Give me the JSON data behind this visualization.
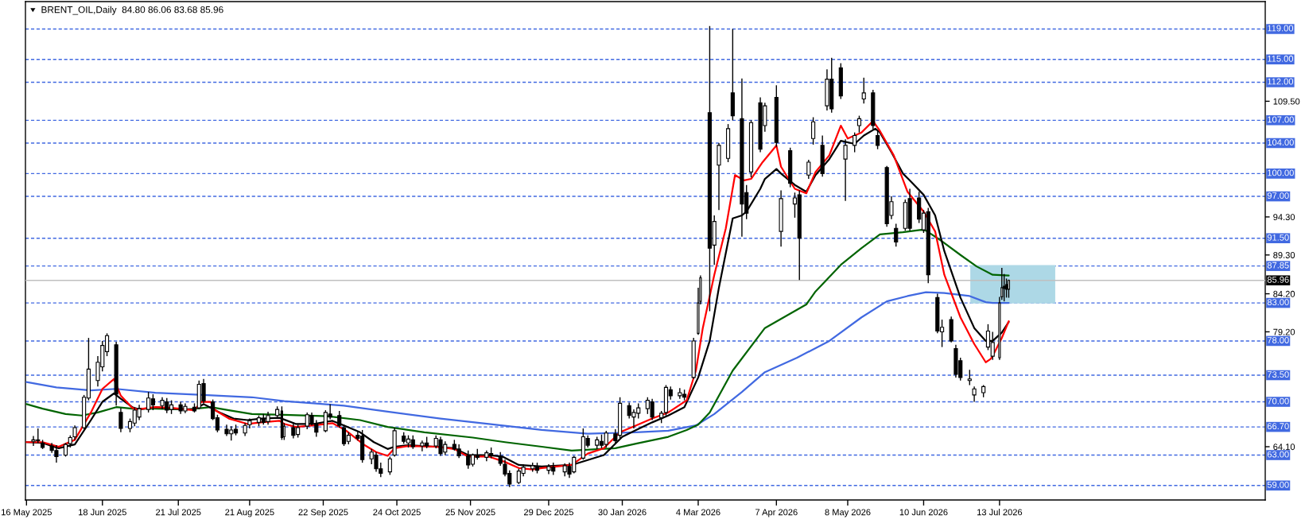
{
  "chart_data": {
    "type": "candlestick",
    "title": "BRENT_OIL,Daily  84.80 86.06 83.68 85.96",
    "x": [
      "2025-05-19",
      "2025-05-21",
      "2025-05-23",
      "2025-05-27",
      "2025-05-29",
      "2025-06-02",
      "2025-06-04",
      "2025-06-06",
      "2025-06-10",
      "2025-06-12",
      "2025-06-16",
      "2025-06-18",
      "2025-06-20",
      "2025-06-24",
      "2025-06-26",
      "2025-06-30",
      "2025-07-02",
      "2025-07-04",
      "2025-07-08",
      "2025-07-10",
      "2025-07-14",
      "2025-07-16",
      "2025-07-18",
      "2025-07-22",
      "2025-07-24",
      "2025-07-28",
      "2025-07-30",
      "2025-08-01",
      "2025-08-05",
      "2025-08-07",
      "2025-08-11",
      "2025-08-13",
      "2025-08-15",
      "2025-08-19",
      "2025-08-21",
      "2025-08-25",
      "2025-08-27",
      "2025-08-29",
      "2025-09-02",
      "2025-09-04",
      "2025-09-05",
      "2025-09-09",
      "2025-09-11",
      "2025-09-15",
      "2025-09-17",
      "2025-09-19",
      "2025-09-23",
      "2025-09-25",
      "2025-09-29",
      "2025-10-01",
      "2025-10-03",
      "2025-10-07",
      "2025-10-09",
      "2025-10-13",
      "2025-10-15",
      "2025-10-17",
      "2025-10-21",
      "2025-10-23",
      "2025-10-27",
      "2025-10-29",
      "2025-10-31",
      "2025-11-04",
      "2025-11-06",
      "2025-11-10",
      "2025-11-12",
      "2025-11-14",
      "2025-11-18",
      "2025-11-20",
      "2025-11-24",
      "2025-11-26",
      "2025-11-28",
      "2025-12-02",
      "2025-12-04",
      "2025-12-08",
      "2025-12-10",
      "2025-12-12",
      "2025-12-16",
      "2025-12-18",
      "2025-12-22",
      "2025-12-24",
      "2025-12-29",
      "2025-12-31",
      "2026-01-05",
      "2026-01-07",
      "2026-01-09",
      "2026-01-13",
      "2026-01-15",
      "2026-01-19",
      "2026-01-21",
      "2026-01-23",
      "2026-01-27",
      "2026-01-29",
      "2026-02-02",
      "2026-02-04",
      "2026-02-06",
      "2026-02-10",
      "2026-02-12",
      "2026-02-16",
      "2026-02-18",
      "2026-02-20",
      "2026-02-24",
      "2026-02-26",
      "2026-03-02",
      "2026-03-04",
      "2026-03-05",
      "2026-03-09",
      "2026-03-11",
      "2026-03-13",
      "2026-03-17",
      "2026-03-19",
      "2026-03-23",
      "2026-03-25",
      "2026-03-27",
      "2026-03-31",
      "2026-04-02",
      "2026-04-07",
      "2026-04-09",
      "2026-04-13",
      "2026-04-15",
      "2026-04-17",
      "2026-04-21",
      "2026-04-23",
      "2026-04-27",
      "2026-04-29",
      "2026-05-01",
      "2026-05-05",
      "2026-05-07",
      "2026-05-11",
      "2026-05-13",
      "2026-05-15",
      "2026-05-19",
      "2026-05-21",
      "2026-05-25",
      "2026-05-27",
      "2026-05-29",
      "2026-06-02",
      "2026-06-04",
      "2026-06-08",
      "2026-06-10",
      "2026-06-12",
      "2026-06-16",
      "2026-06-18",
      "2026-06-22",
      "2026-06-24",
      "2026-06-26",
      "2026-06-30",
      "2026-07-02",
      "2026-07-06",
      "2026-07-08",
      "2026-07-10",
      "2026-07-13",
      "2026-07-14",
      "2026-07-15",
      "2026-07-16",
      "2026-07-17"
    ],
    "ohlc": [
      [
        64.8,
        65.5,
        64.2,
        65.0
      ],
      [
        65.0,
        66.5,
        64.6,
        64.9
      ],
      [
        64.6,
        65.0,
        63.8,
        64.0
      ],
      [
        64.2,
        64.6,
        63.3,
        63.6
      ],
      [
        63.6,
        64.3,
        62.0,
        62.8
      ],
      [
        63.0,
        64.6,
        62.8,
        64.4
      ],
      [
        64.5,
        65.6,
        64.0,
        65.3
      ],
      [
        65.4,
        66.9,
        65.0,
        66.6
      ],
      [
        66.6,
        70.9,
        66.4,
        70.6
      ],
      [
        70.5,
        78.4,
        70.2,
        74.3
      ],
      [
        72.8,
        76.0,
        72.0,
        75.2
      ],
      [
        74.6,
        78.0,
        74.0,
        77.4
      ],
      [
        76.6,
        79.0,
        76.0,
        78.7
      ],
      [
        77.5,
        77.9,
        69.5,
        71.0
      ],
      [
        68.6,
        69.2,
        66.0,
        66.5
      ],
      [
        66.5,
        67.8,
        66.0,
        67.4
      ],
      [
        67.2,
        69.2,
        66.8,
        68.9
      ],
      [
        68.0,
        69.6,
        67.6,
        69.1
      ],
      [
        69.0,
        71.3,
        68.6,
        70.5
      ],
      [
        70.4,
        71.0,
        68.9,
        69.6
      ],
      [
        69.5,
        70.6,
        69.0,
        70.2
      ],
      [
        70.0,
        70.5,
        68.5,
        68.9
      ],
      [
        69.0,
        70.2,
        68.4,
        69.6
      ],
      [
        69.6,
        70.0,
        68.4,
        68.8
      ],
      [
        68.8,
        69.8,
        68.5,
        69.4
      ],
      [
        69.3,
        69.8,
        68.6,
        68.8
      ],
      [
        69.2,
        72.8,
        69.0,
        72.3
      ],
      [
        72.4,
        73.0,
        69.8,
        70.1
      ],
      [
        70.0,
        70.3,
        67.6,
        67.8
      ],
      [
        67.9,
        68.3,
        66.0,
        66.3
      ],
      [
        66.4,
        67.0,
        65.5,
        65.8
      ],
      [
        65.8,
        66.8,
        64.9,
        66.3
      ],
      [
        66.4,
        67.0,
        65.6,
        65.9
      ],
      [
        65.9,
        67.2,
        65.5,
        66.9
      ],
      [
        67.0,
        67.8,
        66.5,
        67.5
      ],
      [
        67.3,
        68.2,
        66.8,
        67.9
      ],
      [
        67.8,
        68.4,
        67.0,
        67.3
      ],
      [
        67.4,
        68.7,
        67.0,
        68.2
      ],
      [
        68.2,
        69.4,
        67.8,
        69.0
      ],
      [
        68.8,
        69.4,
        65.0,
        65.3
      ],
      [
        65.4,
        67.2,
        65.0,
        66.8
      ],
      [
        66.6,
        67.3,
        65.2,
        65.6
      ],
      [
        65.7,
        67.0,
        65.3,
        66.6
      ],
      [
        66.8,
        68.6,
        66.4,
        68.3
      ],
      [
        68.2,
        68.6,
        66.9,
        67.2
      ],
      [
        67.1,
        67.6,
        65.4,
        66.0
      ],
      [
        66.2,
        68.9,
        66.0,
        68.6
      ],
      [
        68.4,
        69.7,
        67.7,
        68.0
      ],
      [
        68.2,
        68.8,
        66.6,
        66.9
      ],
      [
        66.6,
        67.0,
        64.2,
        64.5
      ],
      [
        64.8,
        66.0,
        64.4,
        65.6
      ],
      [
        65.6,
        66.2,
        64.9,
        65.2
      ],
      [
        65.5,
        66.3,
        62.0,
        62.4
      ],
      [
        62.5,
        63.8,
        61.8,
        63.4
      ],
      [
        63.0,
        63.4,
        60.8,
        61.2
      ],
      [
        61.2,
        62.0,
        60.1,
        60.6
      ],
      [
        60.8,
        62.8,
        60.4,
        62.5
      ],
      [
        63.0,
        66.6,
        62.8,
        66.2
      ],
      [
        65.5,
        66.0,
        64.5,
        64.8
      ],
      [
        64.6,
        65.6,
        64.0,
        65.1
      ],
      [
        65.0,
        65.6,
        63.8,
        64.1
      ],
      [
        64.2,
        64.9,
        63.5,
        64.6
      ],
      [
        64.6,
        65.4,
        63.9,
        64.2
      ],
      [
        64.2,
        65.6,
        63.9,
        65.2
      ],
      [
        65.0,
        65.4,
        62.9,
        63.2
      ],
      [
        63.4,
        64.8,
        63.0,
        64.4
      ],
      [
        64.4,
        65.0,
        63.6,
        63.8
      ],
      [
        63.8,
        64.4,
        62.6,
        62.9
      ],
      [
        62.9,
        63.6,
        61.2,
        61.7
      ],
      [
        61.8,
        63.2,
        61.5,
        63.0
      ],
      [
        63.0,
        63.8,
        62.4,
        62.7
      ],
      [
        62.7,
        63.6,
        62.2,
        63.3
      ],
      [
        63.2,
        64.0,
        62.6,
        62.9
      ],
      [
        62.8,
        63.4,
        61.6,
        61.9
      ],
      [
        61.8,
        62.4,
        60.2,
        60.5
      ],
      [
        60.6,
        61.0,
        58.8,
        59.2
      ],
      [
        59.4,
        61.2,
        59.2,
        60.9
      ],
      [
        60.6,
        61.8,
        60.2,
        61.4
      ],
      [
        61.2,
        62.0,
        60.8,
        61.6
      ],
      [
        61.5,
        62.0,
        60.6,
        61.0
      ],
      [
        61.0,
        61.8,
        60.5,
        61.5
      ],
      [
        61.4,
        62.0,
        60.4,
        60.9
      ],
      [
        60.8,
        61.9,
        60.2,
        61.6
      ],
      [
        61.5,
        62.0,
        60.0,
        60.5
      ],
      [
        60.8,
        62.9,
        60.6,
        62.7
      ],
      [
        62.6,
        66.5,
        62.4,
        65.4
      ],
      [
        65.2,
        65.6,
        64.0,
        64.3
      ],
      [
        64.3,
        65.4,
        63.8,
        65.0
      ],
      [
        64.8,
        65.7,
        63.9,
        64.3
      ],
      [
        64.4,
        66.2,
        64.0,
        65.9
      ],
      [
        65.8,
        66.4,
        64.5,
        64.9
      ],
      [
        65.6,
        70.6,
        65.2,
        69.8
      ],
      [
        69.5,
        69.9,
        67.8,
        68.2
      ],
      [
        68.0,
        69.0,
        66.5,
        68.6
      ],
      [
        68.5,
        69.8,
        67.8,
        69.2
      ],
      [
        69.1,
        70.6,
        68.4,
        70.2
      ],
      [
        70.0,
        70.4,
        67.6,
        68.0
      ],
      [
        67.9,
        68.8,
        67.2,
        68.5
      ],
      [
        68.6,
        72.2,
        68.2,
        71.9
      ],
      [
        71.6,
        72.0,
        70.3,
        70.8
      ],
      [
        70.8,
        71.8,
        70.4,
        71.2
      ],
      [
        71.0,
        71.6,
        70.2,
        70.6
      ],
      [
        73.2,
        78.4,
        73.0,
        78.0
      ],
      [
        79.0,
        85.0,
        78.8,
        83.0
      ],
      [
        83.2,
        86.6,
        82.8,
        86.3
      ],
      [
        108.0,
        119.4,
        81.9,
        90.2
      ],
      [
        90.6,
        94.5,
        88.0,
        93.7
      ],
      [
        101.1,
        104.0,
        95.2,
        103.7
      ],
      [
        102.0,
        106.5,
        101.5,
        105.9
      ],
      [
        110.6,
        119.0,
        107.0,
        107.6
      ],
      [
        107.2,
        112.5,
        91.7,
        96.0
      ],
      [
        97.5,
        98.5,
        94.0,
        94.8
      ],
      [
        100.2,
        107.0,
        99.5,
        106.7
      ],
      [
        109.3,
        110.0,
        102.8,
        103.2
      ],
      [
        106.3,
        109.3,
        105.5,
        108.9
      ],
      [
        110.0,
        111.6,
        103.5,
        104.1
      ],
      [
        92.4,
        97.8,
        90.4,
        96.7
      ],
      [
        103.0,
        103.4,
        98.2,
        98.7
      ],
      [
        96.0,
        97.5,
        94.2,
        96.8
      ],
      [
        97.2,
        97.8,
        86.0,
        91.5
      ],
      [
        99.8,
        101.8,
        99.3,
        101.5
      ],
      [
        104.6,
        107.4,
        103.8,
        106.8
      ],
      [
        103.7,
        105.0,
        99.6,
        100.0
      ],
      [
        108.9,
        113.7,
        108.3,
        112.4
      ],
      [
        112.4,
        115.2,
        108.0,
        108.5
      ],
      [
        113.9,
        114.5,
        109.8,
        110.2
      ],
      [
        101.9,
        104.5,
        96.4,
        103.7
      ],
      [
        103.7,
        105.4,
        102.8,
        105.0
      ],
      [
        106.3,
        107.6,
        105.4,
        107.2
      ],
      [
        109.8,
        112.6,
        109.2,
        110.6
      ],
      [
        110.6,
        111.0,
        105.8,
        106.3
      ],
      [
        105.0,
        105.6,
        103.2,
        103.7
      ],
      [
        100.8,
        101.0,
        93.0,
        93.4
      ],
      [
        94.5,
        97.0,
        94.0,
        96.3
      ],
      [
        92.8,
        93.4,
        90.4,
        91.0
      ],
      [
        92.8,
        96.6,
        92.5,
        96.2
      ],
      [
        96.7,
        98.0,
        92.5,
        92.8
      ],
      [
        96.8,
        97.6,
        93.5,
        94.0
      ],
      [
        92.6,
        95.2,
        92.2,
        94.8
      ],
      [
        95.0,
        95.5,
        85.6,
        86.7
      ],
      [
        83.7,
        84.2,
        79.0,
        79.3
      ],
      [
        79.2,
        80.8,
        77.2,
        79.8
      ],
      [
        80.8,
        81.2,
        77.8,
        78.0
      ],
      [
        77.0,
        77.5,
        73.2,
        73.6
      ],
      [
        75.4,
        75.8,
        72.8,
        73.2
      ],
      [
        72.8,
        74.2,
        72.2,
        73.0
      ],
      [
        70.9,
        72.0,
        70.0,
        71.7
      ],
      [
        71.2,
        72.2,
        70.6,
        72.0
      ],
      [
        77.2,
        80.2,
        76.8,
        79.3
      ],
      [
        76.0,
        79.2,
        75.5,
        77.8
      ],
      [
        75.8,
        83.8,
        75.5,
        83.0
      ],
      [
        83.8,
        87.6,
        83.4,
        85.0
      ],
      [
        85.2,
        86.8,
        83.2,
        84.9
      ],
      [
        85.4,
        86.2,
        83.7,
        84.8
      ],
      [
        84.8,
        86.06,
        83.68,
        85.96
      ]
    ],
    "series": [
      {
        "type": "line",
        "color": "#add8e6",
        "x": [
          "2026-06-30T12:00",
          "2026-08-06"
        ],
        "values": [
          87.85,
          87.85
        ],
        "lower": [
          83,
          83
        ],
        "upper": [
          87.85,
          87.85
        ]
      },
      {
        "type": "line",
        "color": "#4169e1",
        "x": [
          "2025-05-16",
          "2025-05-29",
          "2025-06-13",
          "2025-06-24",
          "2025-07-11",
          "2025-08-01",
          "2025-08-22",
          "2025-09-05",
          "2025-10-01",
          "2025-10-20",
          "2025-11-12",
          "2025-12-03",
          "2025-12-26",
          "2026-01-15",
          "2026-02-05",
          "2026-02-19",
          "2026-03-03",
          "2026-03-11",
          "2026-03-23",
          "2026-04-02",
          "2026-04-16",
          "2026-04-30",
          "2026-05-14",
          "2026-05-25",
          "2026-06-03",
          "2026-06-11",
          "2026-06-19",
          "2026-06-30",
          "2026-07-07",
          "2026-07-10",
          "2026-07-17"
        ],
        "values": [
          72.6,
          71.9,
          71.5,
          71.7,
          71.2,
          70.9,
          70.6,
          70.1,
          69.5,
          68.7,
          67.8,
          67.1,
          66.3,
          65.8,
          66.0,
          66.2,
          66.9,
          68.4,
          71.3,
          73.9,
          75.8,
          78.0,
          81.1,
          83.2,
          83.9,
          84.4,
          84.3,
          83.9,
          83.1,
          83.0,
          83.0
        ]
      },
      {
        "type": "line",
        "color": "#006400",
        "x": [
          "2025-05-16",
          "2025-05-23",
          "2025-06-02",
          "2025-06-09",
          "2025-06-16",
          "2025-06-24",
          "2025-07-01",
          "2025-07-11",
          "2025-07-25",
          "2025-08-04",
          "2025-08-12",
          "2025-08-22",
          "2025-09-05",
          "2025-09-24",
          "2025-10-08",
          "2025-10-20",
          "2025-11-05",
          "2025-11-26",
          "2025-12-10",
          "2025-12-26",
          "2026-01-08",
          "2026-01-27",
          "2026-02-05",
          "2026-02-19",
          "2026-02-27",
          "2026-03-04",
          "2026-03-09",
          "2026-03-19",
          "2026-04-02",
          "2026-04-20",
          "2026-04-24",
          "2026-05-05",
          "2026-05-14",
          "2026-05-22",
          "2026-06-01",
          "2026-06-09",
          "2026-06-11",
          "2026-06-18",
          "2026-06-26",
          "2026-07-03",
          "2026-07-10",
          "2026-07-17"
        ],
        "values": [
          69.7,
          69.1,
          68.4,
          68.2,
          68.6,
          69.3,
          69.1,
          69.1,
          69.0,
          69.3,
          68.9,
          68.4,
          68.3,
          68.1,
          67.6,
          66.7,
          66.0,
          65.3,
          64.7,
          64.1,
          63.6,
          63.9,
          64.5,
          65.4,
          66.3,
          67.0,
          68.6,
          74.1,
          79.7,
          82.8,
          84.5,
          88.0,
          90.2,
          92.0,
          92.3,
          92.6,
          92.5,
          91.1,
          89.3,
          87.8,
          86.7,
          86.6
        ]
      },
      {
        "type": "line",
        "color": "#000000",
        "x": [
          "2025-05-16",
          "2025-05-23",
          "2025-05-30",
          "2025-06-06",
          "2025-06-13",
          "2025-06-18",
          "2025-06-23",
          "2025-06-26",
          "2025-07-01",
          "2025-07-04",
          "2025-07-11",
          "2025-07-18",
          "2025-07-28",
          "2025-08-01",
          "2025-08-08",
          "2025-08-14",
          "2025-08-20",
          "2025-08-26",
          "2025-09-03",
          "2025-09-10",
          "2025-09-18",
          "2025-09-26",
          "2025-10-01",
          "2025-10-08",
          "2025-10-14",
          "2025-10-20",
          "2025-10-23",
          "2025-10-29",
          "2025-11-10",
          "2025-11-18",
          "2025-11-24",
          "2025-12-03",
          "2025-12-09",
          "2025-12-16",
          "2025-12-26",
          "2026-01-08",
          "2026-01-22",
          "2026-01-30",
          "2026-02-05",
          "2026-02-12",
          "2026-02-19",
          "2026-02-26",
          "2026-03-04",
          "2026-03-09",
          "2026-03-13",
          "2026-03-19",
          "2026-03-23",
          "2026-03-25",
          "2026-03-31",
          "2026-04-02",
          "2026-04-07",
          "2026-04-09",
          "2026-04-15",
          "2026-04-20",
          "2026-04-24",
          "2026-04-30",
          "2026-05-05",
          "2026-05-11",
          "2026-05-15",
          "2026-05-20",
          "2026-05-22",
          "2026-05-27",
          "2026-06-01",
          "2026-06-04",
          "2026-06-10",
          "2026-06-15",
          "2026-06-19",
          "2026-06-26",
          "2026-07-02",
          "2026-07-07",
          "2026-07-10",
          "2026-07-14",
          "2026-07-17"
        ],
        "values": [
          64.7,
          64.6,
          63.9,
          64.4,
          67.6,
          70.0,
          71.1,
          70.4,
          69.3,
          69.0,
          69.3,
          69.1,
          69.0,
          69.7,
          68.6,
          67.8,
          67.6,
          67.8,
          67.9,
          67.1,
          67.1,
          67.5,
          66.9,
          66.0,
          64.7,
          63.8,
          64.1,
          64.3,
          64.1,
          63.9,
          63.0,
          63.0,
          62.8,
          61.7,
          61.5,
          61.7,
          63.0,
          65.4,
          66.3,
          67.3,
          68.2,
          69.3,
          73.2,
          78.0,
          85.0,
          94.1,
          94.5,
          95.0,
          98.0,
          99.3,
          100.6,
          100.0,
          98.5,
          97.6,
          99.8,
          101.9,
          104.3,
          103.9,
          105.0,
          105.9,
          105.4,
          102.8,
          100.0,
          99.1,
          97.2,
          94.5,
          89.8,
          83.7,
          79.7,
          78.0,
          78.0,
          79.1,
          80.5
        ]
      },
      {
        "type": "line",
        "color": "#ff0000",
        "x": [
          "2025-05-16",
          "2025-05-23",
          "2025-05-30",
          "2025-06-06",
          "2025-06-13",
          "2025-06-18",
          "2025-06-23",
          "2025-06-26",
          "2025-07-01",
          "2025-07-03",
          "2025-07-11",
          "2025-07-18",
          "2025-07-28",
          "2025-07-31",
          "2025-08-04",
          "2025-08-06",
          "2025-08-12",
          "2025-08-20",
          "2025-08-26",
          "2025-09-03",
          "2025-09-05",
          "2025-09-10",
          "2025-09-18",
          "2025-09-26",
          "2025-10-02",
          "2025-10-10",
          "2025-10-15",
          "2025-10-20",
          "2025-10-23",
          "2025-10-29",
          "2025-11-10",
          "2025-11-18",
          "2025-11-24",
          "2025-12-03",
          "2025-12-10",
          "2025-12-16",
          "2025-12-22",
          "2025-12-26",
          "2026-01-08",
          "2026-01-15",
          "2026-01-22",
          "2026-01-29",
          "2026-02-05",
          "2026-02-12",
          "2026-02-19",
          "2026-02-27",
          "2026-03-03",
          "2026-03-06",
          "2026-03-11",
          "2026-03-16",
          "2026-03-20",
          "2026-03-24",
          "2026-03-27",
          "2026-04-01",
          "2026-04-07",
          "2026-04-09",
          "2026-04-15",
          "2026-04-20",
          "2026-04-24",
          "2026-04-30",
          "2026-05-05",
          "2026-05-08",
          "2026-05-14",
          "2026-05-19",
          "2026-05-22",
          "2026-05-28",
          "2026-06-03",
          "2026-06-10",
          "2026-06-15",
          "2026-06-19",
          "2026-06-26",
          "2026-07-02",
          "2026-07-07",
          "2026-07-09",
          "2026-07-10",
          "2026-07-14",
          "2026-07-17"
        ],
        "values": [
          64.7,
          64.7,
          64.1,
          65.0,
          68.6,
          71.7,
          73.0,
          70.8,
          69.2,
          69.0,
          69.3,
          69.2,
          68.9,
          70.0,
          70.0,
          68.9,
          67.8,
          67.1,
          67.3,
          67.5,
          67.1,
          66.7,
          66.9,
          67.2,
          66.2,
          64.3,
          63.4,
          62.9,
          63.9,
          64.2,
          64.1,
          63.8,
          62.8,
          62.8,
          62.1,
          61.3,
          61.1,
          61.3,
          61.7,
          63.2,
          63.9,
          66.0,
          66.9,
          67.8,
          68.6,
          70.2,
          74.1,
          79.7,
          86.7,
          92.8,
          99.8,
          99.1,
          99.3,
          101.5,
          103.7,
          100.9,
          98.0,
          97.4,
          100.2,
          102.4,
          106.3,
          104.6,
          105.4,
          106.9,
          105.6,
          102.4,
          97.6,
          95.0,
          92.4,
          86.7,
          81.1,
          77.6,
          75.2,
          75.6,
          76.0,
          78.4,
          80.6
        ]
      }
    ],
    "xlim": [
      "2025-05-15T13:00",
      "2026-11-05T12:00"
    ],
    "xticks": [
      {
        "value": "2025-05-16",
        "label": "16 May 2025"
      },
      {
        "value": "2025-06-18",
        "label": "18 Jun 2025"
      },
      {
        "value": "2025-07-21",
        "label": "21 Jul 2025"
      },
      {
        "value": "2025-08-21",
        "label": "21 Aug 2025"
      },
      {
        "value": "2025-09-22",
        "label": "22 Sep 2025"
      },
      {
        "value": "2025-10-24",
        "label": "24 Oct 2025"
      },
      {
        "value": "2025-11-25",
        "label": "25 Nov 2025"
      },
      {
        "value": "2025-12-29",
        "label": "29 Dec 2025"
      },
      {
        "value": "2026-01-30",
        "label": "30 Jan 2026"
      },
      {
        "value": "2026-03-04",
        "label": "4 Mar 2026"
      },
      {
        "value": "2026-04-07",
        "label": "7 Apr 2026"
      },
      {
        "value": "2026-05-08",
        "label": "8 May 2026"
      },
      {
        "value": "2026-06-10",
        "label": "10 Jun 2026"
      },
      {
        "value": "2026-07-13",
        "label": "13 Jul 2026"
      }
    ],
    "ylim": [
      57.1,
      122.6
    ],
    "yticks": [
      {
        "value": 109.5,
        "label": "109.50"
      },
      {
        "value": 94.3,
        "label": "94.30"
      },
      {
        "value": 89.3,
        "label": "89.30"
      },
      {
        "value": 84.2,
        "label": "84.20"
      },
      {
        "value": 79.2,
        "label": "79.20"
      },
      {
        "value": 64.1,
        "label": "64.10"
      }
    ],
    "ref_lines": [
      {
        "axis": "y",
        "value": 119,
        "label": "119.00",
        "color": "#4169e1",
        "line_style": "dashed"
      },
      {
        "axis": "y",
        "value": 115,
        "label": "115.00",
        "color": "#4169e1",
        "line_style": "dashed"
      },
      {
        "axis": "y",
        "value": 112,
        "label": "112.00",
        "color": "#4169e1",
        "line_style": "dashed"
      },
      {
        "axis": "y",
        "value": 107,
        "label": "107.00",
        "color": "#4169e1",
        "line_style": "dashed"
      },
      {
        "axis": "y",
        "value": 104,
        "label": "104.00",
        "color": "#4169e1",
        "line_style": "dashed"
      },
      {
        "axis": "y",
        "value": 100,
        "label": "100.00",
        "color": "#4169e1",
        "line_style": "dashed"
      },
      {
        "axis": "y",
        "value": 97,
        "label": "97.00",
        "color": "#4169e1",
        "line_style": "dashed"
      },
      {
        "axis": "y",
        "value": 91.5,
        "label": "91.50",
        "color": "#4169e1",
        "line_style": "dashed"
      },
      {
        "axis": "y",
        "value": 87.85,
        "label": "87.85",
        "color": "#4169e1",
        "line_style": "dashed"
      },
      {
        "axis": "y",
        "value": 85.96,
        "label": "85.96",
        "color": "#c0c0c0",
        "line_style": "solid"
      },
      {
        "axis": "y",
        "value": 83,
        "label": "83.00",
        "color": "#4169e1",
        "line_style": "dashed"
      },
      {
        "axis": "y",
        "value": 78,
        "label": "78.00",
        "color": "#4169e1",
        "line_style": "dashed"
      },
      {
        "axis": "y",
        "value": 73.5,
        "label": "73.50",
        "color": "#4169e1",
        "line_style": "dashed"
      },
      {
        "axis": "y",
        "value": 70,
        "label": "70.00",
        "color": "#4169e1",
        "line_style": "dashed"
      },
      {
        "axis": "y",
        "value": 66.7,
        "label": "66.70",
        "color": "#4169e1",
        "line_style": "dashed"
      },
      {
        "axis": "y",
        "value": 63,
        "label": "63.00",
        "color": "#4169e1",
        "line_style": "dashed"
      },
      {
        "axis": "y",
        "value": 59,
        "label": "59.00",
        "color": "#4169e1",
        "line_style": "dashed"
      }
    ]
  }
}
